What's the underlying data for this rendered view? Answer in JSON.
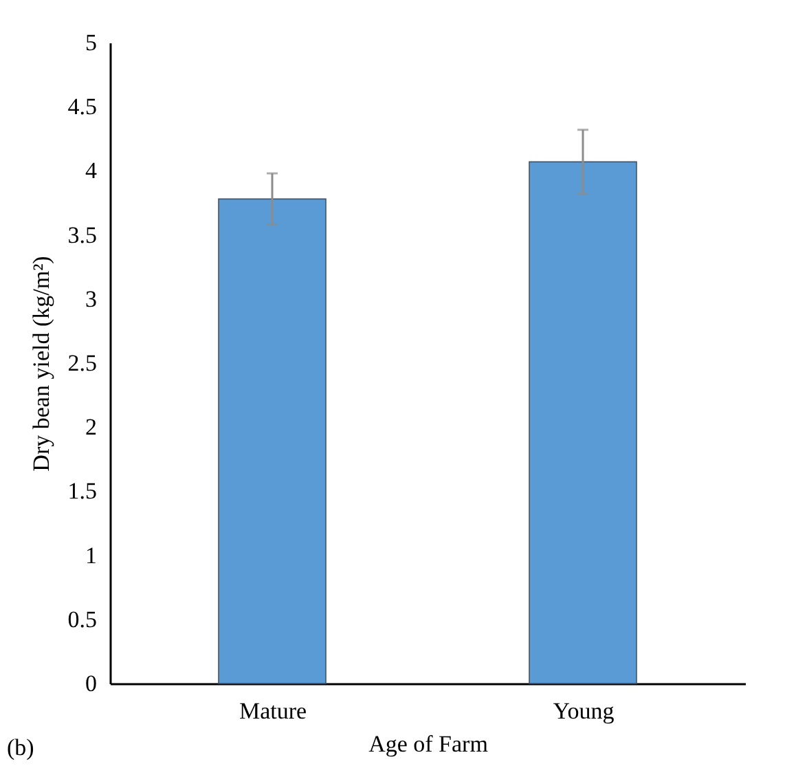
{
  "chart_data": {
    "type": "bar",
    "xlabel": "Age of Farm",
    "ylabel": "Dry bean yield (kg/m²)",
    "categories": [
      "Mature",
      "Young"
    ],
    "values": [
      3.78,
      4.07
    ],
    "errors": [
      0.2,
      0.25
    ],
    "color": "#5b9bd5",
    "ylim": [
      0,
      5
    ],
    "yticks": [
      0,
      0.5,
      1,
      1.5,
      2,
      2.5,
      3,
      3.5,
      4,
      4.5,
      5
    ],
    "grid": false,
    "annotations": [
      "(b)"
    ]
  }
}
